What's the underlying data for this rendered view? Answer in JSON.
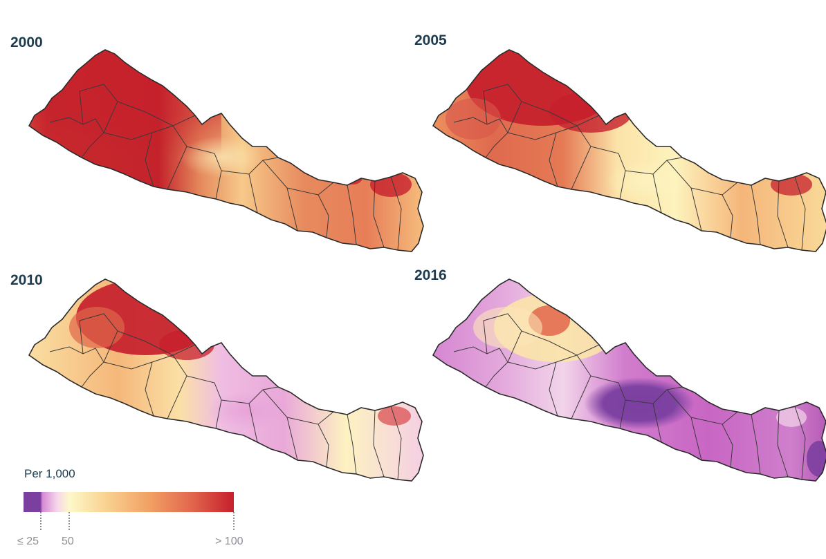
{
  "panels": [
    {
      "year": "2000"
    },
    {
      "year": "2005"
    },
    {
      "year": "2010"
    },
    {
      "year": "2016"
    }
  ],
  "legend": {
    "title": "Per 1,000",
    "ticks": [
      "≤ 25",
      "50",
      "> 100"
    ],
    "colors": [
      "#7b3fa0",
      "#c25fc0",
      "#f5c8e8",
      "#fdf6c4",
      "#f9d08e",
      "#f1a064",
      "#e2664d",
      "#c61f2c"
    ]
  },
  "colors": {
    "title": "#1d3b4f",
    "border": "#3a3a3a",
    "snow": "#e4e6ea"
  }
}
